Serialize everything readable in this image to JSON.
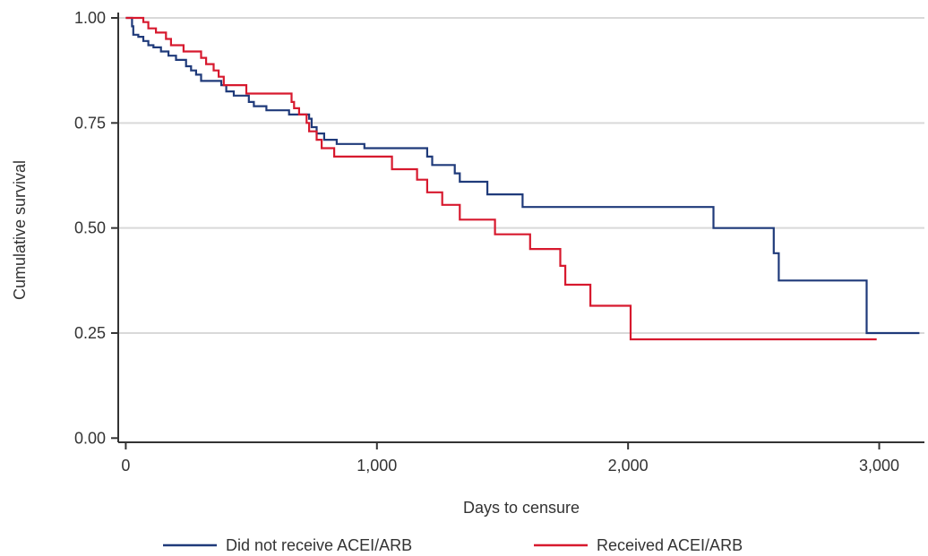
{
  "chart_data": {
    "type": "line",
    "step": true,
    "xlabel": "Days to censure",
    "ylabel": "Cumulative survival",
    "xlim": [
      -30,
      3180
    ],
    "ylim": [
      -0.01,
      1.0
    ],
    "x_ticks": [
      0,
      1000,
      2000,
      3000
    ],
    "x_tick_labels": [
      "0",
      "1,000",
      "2,000",
      "3,000"
    ],
    "y_ticks": [
      0.0,
      0.25,
      0.5,
      0.75,
      1.0
    ],
    "y_tick_labels": [
      "0.00",
      "0.25",
      "0.50",
      "0.75",
      "1.00"
    ],
    "grid": "horizontal",
    "legend_position": "bottom",
    "series": [
      {
        "name": "Did not receive ACEI/ARB",
        "color": "#1f3a7a",
        "points": [
          [
            0,
            1.0
          ],
          [
            25,
            1.0
          ],
          [
            25,
            0.98
          ],
          [
            30,
            0.98
          ],
          [
            30,
            0.96
          ],
          [
            50,
            0.96
          ],
          [
            50,
            0.955
          ],
          [
            70,
            0.955
          ],
          [
            70,
            0.945
          ],
          [
            90,
            0.945
          ],
          [
            90,
            0.935
          ],
          [
            110,
            0.935
          ],
          [
            110,
            0.93
          ],
          [
            140,
            0.93
          ],
          [
            140,
            0.92
          ],
          [
            170,
            0.92
          ],
          [
            170,
            0.91
          ],
          [
            200,
            0.91
          ],
          [
            200,
            0.9
          ],
          [
            240,
            0.9
          ],
          [
            240,
            0.885
          ],
          [
            260,
            0.885
          ],
          [
            260,
            0.875
          ],
          [
            280,
            0.875
          ],
          [
            280,
            0.865
          ],
          [
            300,
            0.865
          ],
          [
            300,
            0.85
          ],
          [
            380,
            0.85
          ],
          [
            380,
            0.84
          ],
          [
            400,
            0.84
          ],
          [
            400,
            0.825
          ],
          [
            430,
            0.825
          ],
          [
            430,
            0.815
          ],
          [
            490,
            0.815
          ],
          [
            490,
            0.8
          ],
          [
            510,
            0.8
          ],
          [
            510,
            0.79
          ],
          [
            560,
            0.79
          ],
          [
            560,
            0.78
          ],
          [
            650,
            0.78
          ],
          [
            650,
            0.77
          ],
          [
            730,
            0.77
          ],
          [
            730,
            0.76
          ],
          [
            740,
            0.76
          ],
          [
            740,
            0.74
          ],
          [
            760,
            0.74
          ],
          [
            760,
            0.725
          ],
          [
            790,
            0.725
          ],
          [
            790,
            0.71
          ],
          [
            840,
            0.71
          ],
          [
            840,
            0.7
          ],
          [
            950,
            0.7
          ],
          [
            950,
            0.69
          ],
          [
            1200,
            0.69
          ],
          [
            1200,
            0.67
          ],
          [
            1220,
            0.67
          ],
          [
            1220,
            0.65
          ],
          [
            1310,
            0.65
          ],
          [
            1310,
            0.63
          ],
          [
            1330,
            0.63
          ],
          [
            1330,
            0.61
          ],
          [
            1440,
            0.61
          ],
          [
            1440,
            0.58
          ],
          [
            1580,
            0.58
          ],
          [
            1580,
            0.55
          ],
          [
            2340,
            0.55
          ],
          [
            2340,
            0.5
          ],
          [
            2580,
            0.5
          ],
          [
            2580,
            0.44
          ],
          [
            2600,
            0.44
          ],
          [
            2600,
            0.375
          ],
          [
            2950,
            0.375
          ],
          [
            2950,
            0.25
          ],
          [
            3160,
            0.25
          ]
        ]
      },
      {
        "name": "Received ACEI/ARB",
        "color": "#d7192e",
        "points": [
          [
            0,
            1.0
          ],
          [
            70,
            1.0
          ],
          [
            70,
            0.99
          ],
          [
            90,
            0.99
          ],
          [
            90,
            0.975
          ],
          [
            120,
            0.975
          ],
          [
            120,
            0.965
          ],
          [
            160,
            0.965
          ],
          [
            160,
            0.95
          ],
          [
            180,
            0.95
          ],
          [
            180,
            0.935
          ],
          [
            230,
            0.935
          ],
          [
            230,
            0.92
          ],
          [
            300,
            0.92
          ],
          [
            300,
            0.905
          ],
          [
            320,
            0.905
          ],
          [
            320,
            0.89
          ],
          [
            350,
            0.89
          ],
          [
            350,
            0.875
          ],
          [
            370,
            0.875
          ],
          [
            370,
            0.86
          ],
          [
            390,
            0.86
          ],
          [
            390,
            0.84
          ],
          [
            480,
            0.84
          ],
          [
            480,
            0.82
          ],
          [
            660,
            0.82
          ],
          [
            660,
            0.8
          ],
          [
            670,
            0.8
          ],
          [
            670,
            0.785
          ],
          [
            690,
            0.785
          ],
          [
            690,
            0.77
          ],
          [
            720,
            0.77
          ],
          [
            720,
            0.75
          ],
          [
            730,
            0.75
          ],
          [
            730,
            0.73
          ],
          [
            760,
            0.73
          ],
          [
            760,
            0.71
          ],
          [
            780,
            0.71
          ],
          [
            780,
            0.69
          ],
          [
            830,
            0.69
          ],
          [
            830,
            0.67
          ],
          [
            1060,
            0.67
          ],
          [
            1060,
            0.64
          ],
          [
            1160,
            0.64
          ],
          [
            1160,
            0.615
          ],
          [
            1200,
            0.615
          ],
          [
            1200,
            0.585
          ],
          [
            1260,
            0.585
          ],
          [
            1260,
            0.555
          ],
          [
            1330,
            0.555
          ],
          [
            1330,
            0.52
          ],
          [
            1470,
            0.52
          ],
          [
            1470,
            0.485
          ],
          [
            1610,
            0.485
          ],
          [
            1610,
            0.45
          ],
          [
            1730,
            0.45
          ],
          [
            1730,
            0.41
          ],
          [
            1750,
            0.41
          ],
          [
            1750,
            0.365
          ],
          [
            1850,
            0.365
          ],
          [
            1850,
            0.315
          ],
          [
            2010,
            0.315
          ],
          [
            2010,
            0.235
          ],
          [
            2990,
            0.235
          ]
        ]
      }
    ]
  }
}
